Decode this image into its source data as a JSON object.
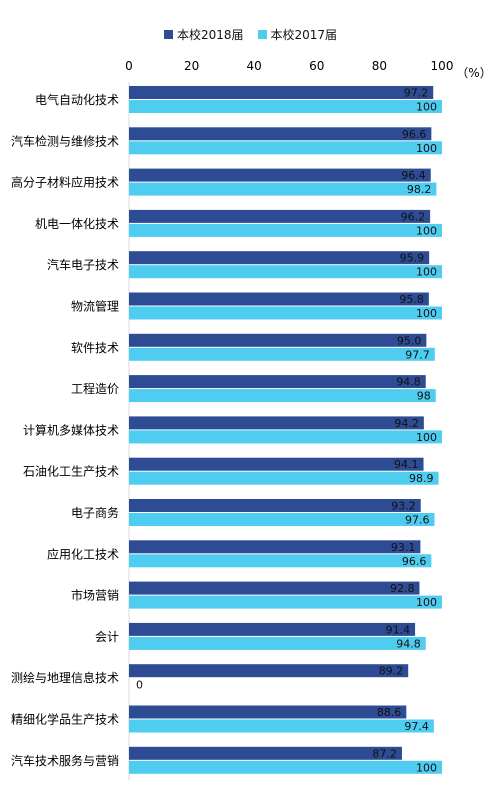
{
  "chart_data": {
    "type": "bar",
    "orientation": "horizontal",
    "unit_label": "（%）",
    "xlim": [
      0,
      100
    ],
    "x_ticks": [
      "0",
      "20",
      "40",
      "60",
      "80",
      "100"
    ],
    "grid": false,
    "legend_position": "top-center",
    "categories": [
      "电气自动化技术",
      "汽车检测与维修技术",
      "高分子材料应用技术",
      "机电一体化技术",
      "汽车电子技术",
      "物流管理",
      "软件技术",
      "工程造价",
      "计算机多媒体技术",
      "石油化工生产技术",
      "电子商务",
      "应用化工技术",
      "市场营销",
      "会计",
      "测绘与地理信息技术",
      "精细化学品生产技术",
      "汽车技术服务与营销"
    ],
    "series": [
      {
        "name": "本校2018届",
        "color": "#2e4c93",
        "values": [
          97.2,
          96.6,
          96.4,
          96.2,
          95.9,
          95.8,
          95.0,
          94.8,
          94.2,
          94.1,
          93.2,
          93.1,
          92.8,
          91.4,
          89.2,
          88.6,
          87.2
        ],
        "labels": [
          "97.2",
          "96.6",
          "96.4",
          "96.2",
          "95.9",
          "95.8",
          "95.0",
          "94.8",
          "94.2",
          "94.1",
          "93.2",
          "93.1",
          "92.8",
          "91.4",
          "89.2",
          "88.6",
          "87.2"
        ]
      },
      {
        "name": "本校2017届",
        "color": "#4ecdf0",
        "values": [
          100,
          100,
          98.2,
          100,
          100,
          100,
          97.7,
          98,
          100,
          98.9,
          97.6,
          96.6,
          100,
          94.8,
          0,
          97.4,
          100
        ],
        "labels": [
          "100",
          "100",
          "98.2",
          "100",
          "100",
          "100",
          "97.7",
          "98",
          "100",
          "98.9",
          "97.6",
          "96.6",
          "100",
          "94.8",
          "0",
          "97.4",
          "100"
        ]
      }
    ]
  }
}
